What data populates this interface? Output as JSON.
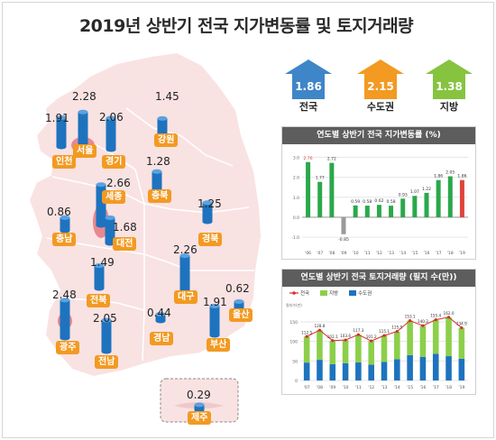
{
  "title": "2019년 상반기 전국 지가변동률 및 토지거래량",
  "regions": [
    {
      "name": "인천",
      "value": "1.91"
    },
    {
      "name": "서울",
      "value": "2.28"
    },
    {
      "name": "경기",
      "value": "2.06"
    },
    {
      "name": "강원",
      "value": "1.45"
    },
    {
      "name": "세종",
      "value": "2.66"
    },
    {
      "name": "충북",
      "value": "1.28"
    },
    {
      "name": "충남",
      "value": "0.86"
    },
    {
      "name": "대전",
      "value": "1.68"
    },
    {
      "name": "경북",
      "value": "1.25"
    },
    {
      "name": "전북",
      "value": "1.49"
    },
    {
      "name": "대구",
      "value": "2.26"
    },
    {
      "name": "울산",
      "value": "0.62"
    },
    {
      "name": "광주",
      "value": "2.48"
    },
    {
      "name": "전남",
      "value": "2.05"
    },
    {
      "name": "경남",
      "value": "0.44"
    },
    {
      "name": "부산",
      "value": "1.91"
    },
    {
      "name": "제주",
      "value": "0.29"
    }
  ],
  "summary": [
    {
      "label": "전국",
      "value": "1.86",
      "color": "#3f86c8"
    },
    {
      "label": "수도권",
      "value": "2.15",
      "color": "#f29a22"
    },
    {
      "label": "지방",
      "value": "1.38",
      "color": "#86c440"
    }
  ],
  "colors": {
    "map_fill": "#f9e2e2",
    "map_highlight": "#e9888e",
    "bar_blue": "#1e73be",
    "badge": "#f29a22",
    "green": "#2aa84a",
    "red": "#e0443b",
    "gray": "#9a9a9a",
    "light_green": "#8ccf4a"
  },
  "chart_data": [
    {
      "type": "bar",
      "title": "연도별 상반기 전국 지가변동률 (%)",
      "categories": [
        "'06",
        "'07",
        "'08",
        "'09",
        "'10",
        "'11",
        "'12",
        "'13",
        "'14",
        "'15",
        "'16",
        "'17",
        "'18",
        "'19"
      ],
      "values": [
        2.76,
        1.77,
        2.72,
        -0.85,
        0.59,
        0.58,
        0.62,
        0.58,
        0.93,
        1.07,
        1.22,
        1.86,
        2.05,
        1.86
      ],
      "value_labels": [
        "2.76",
        "1.77",
        "2.72",
        "-0.85",
        "0.59",
        "0.58",
        "0.62",
        "0.58",
        "0.93",
        "1.07",
        "1.22",
        "1.86",
        "2.05",
        "1.86"
      ],
      "yticks": [
        "3.0",
        "2.0",
        "1.0",
        "0.0",
        "-1.0"
      ],
      "ylim": [
        -1.4,
        3.2
      ],
      "grid": true
    },
    {
      "type": "bar",
      "title": "연도별 상반기 전국 토지거래량 (필지 수(만))",
      "legend": [
        "전국",
        "지방",
        "수도권"
      ],
      "legend_position": "top-left",
      "unit_label": "필지수(만)",
      "categories": [
        "'07",
        "'08",
        "'09",
        "'10",
        "'11",
        "'12",
        "'13",
        "'14",
        "'15",
        "'16",
        "'17",
        "'18",
        "'19"
      ],
      "series": [
        {
          "name": "전국",
          "values": [
            112.5,
            128.8,
            102.1,
            103.6,
            117.3,
            101.2,
            115.1,
            125.5,
            153.1,
            140.2,
            155.4,
            162.0,
            134.9
          ]
        },
        {
          "name": "지방",
          "values": [
            66.6,
            75.9,
            60.6,
            59.2,
            71.2,
            60.9,
            67.6,
            70.8,
            88.2,
            79.6,
            87.0,
            99.8,
            79.3
          ]
        },
        {
          "name": "수도권",
          "values": [
            45.9,
            52.9,
            41.5,
            44.4,
            46.1,
            40.3,
            47.5,
            54.7,
            64.9,
            60.6,
            68.4,
            62.2,
            55.6
          ]
        }
      ],
      "value_labels": [
        "112.5",
        "128.8",
        "102.1",
        "103.6",
        "117.3",
        "101.2",
        "115.1",
        "125.5",
        "153.1",
        "140.2",
        "155.4",
        "162.0",
        "134.9"
      ],
      "yticks": [
        "150",
        "100",
        "50",
        "0"
      ],
      "ylim": [
        0,
        180
      ],
      "grid": true
    }
  ]
}
